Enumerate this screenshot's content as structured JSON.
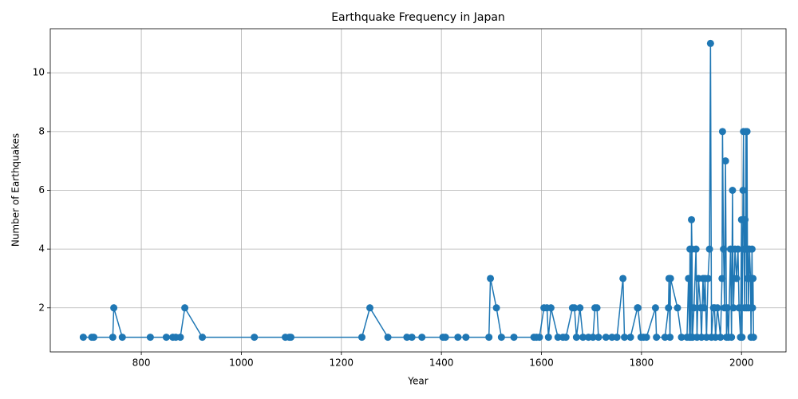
{
  "chart_data": {
    "type": "line",
    "title": "Earthquake Frequency in Japan",
    "x_label": "Year",
    "y_label": "Number of Earthquakes",
    "x": [
      684,
      701,
      705,
      743,
      745,
      762,
      818,
      850,
      863,
      869,
      878,
      887,
      922,
      1026,
      1088,
      1096,
      1099,
      1241,
      1257,
      1293,
      1331,
      1341,
      1361,
      1403,
      1408,
      1433,
      1449,
      1495,
      1498,
      1510,
      1520,
      1545,
      1585,
      1590,
      1596,
      1605,
      1611,
      1614,
      1619,
      1633,
      1643,
      1649,
      1662,
      1666,
      1670,
      1677,
      1683,
      1694,
      1703,
      1707,
      1711,
      1714,
      1729,
      1741,
      1751,
      1763,
      1766,
      1778,
      1792,
      1793,
      1799,
      1804,
      1810,
      1828,
      1830,
      1847,
      1854,
      1855,
      1857,
      1858,
      1872,
      1880,
      1891,
      1894,
      1896,
      1897,
      1899,
      1900,
      1901,
      1902,
      1905,
      1909,
      1911,
      1914,
      1918,
      1920,
      1923,
      1925,
      1927,
      1930,
      1933,
      1936,
      1938,
      1940,
      1944,
      1946,
      1948,
      1952,
      1958,
      1961,
      1962,
      1964,
      1966,
      1968,
      1970,
      1972,
      1974,
      1978,
      1980,
      1982,
      1983,
      1984,
      1987,
      1990,
      1993,
      1995,
      1998,
      2000,
      2001,
      2003,
      2004,
      2005,
      2006,
      2007,
      2008,
      2009,
      2010,
      2011,
      2012,
      2013,
      2014,
      2016,
      2018,
      2019,
      2021,
      2022,
      2023,
      2024
    ],
    "series": [
      {
        "name": "Earthquakes",
        "color": "#1f77b4",
        "values": [
          1,
          1,
          1,
          1,
          2,
          1,
          1,
          1,
          1,
          1,
          1,
          2,
          1,
          1,
          1,
          1,
          1,
          1,
          2,
          1,
          1,
          1,
          1,
          1,
          1,
          1,
          1,
          1,
          3,
          2,
          1,
          1,
          1,
          1,
          1,
          2,
          2,
          1,
          2,
          1,
          1,
          1,
          2,
          2,
          1,
          2,
          1,
          1,
          1,
          2,
          2,
          1,
          1,
          1,
          1,
          3,
          1,
          1,
          2,
          2,
          1,
          1,
          1,
          2,
          1,
          1,
          2,
          3,
          1,
          3,
          2,
          1,
          1,
          3,
          1,
          4,
          1,
          5,
          4,
          1,
          2,
          4,
          1,
          3,
          2,
          1,
          3,
          2,
          3,
          1,
          3,
          4,
          11,
          1,
          2,
          2,
          1,
          2,
          1,
          3,
          8,
          4,
          2,
          7,
          1,
          2,
          1,
          4,
          1,
          6,
          3,
          2,
          4,
          3,
          4,
          2,
          1,
          5,
          1,
          6,
          8,
          4,
          2,
          5,
          4,
          8,
          2,
          8,
          3,
          4,
          2,
          4,
          3,
          1,
          4,
          2,
          3,
          1
        ]
      }
    ],
    "xlim": [
      618,
      2089
    ],
    "ylim": [
      0.5,
      11.5
    ],
    "xticks": [
      800,
      1000,
      1200,
      1400,
      1600,
      1800,
      2000
    ],
    "yticks": [
      2,
      4,
      6,
      8,
      10
    ],
    "grid": true
  }
}
